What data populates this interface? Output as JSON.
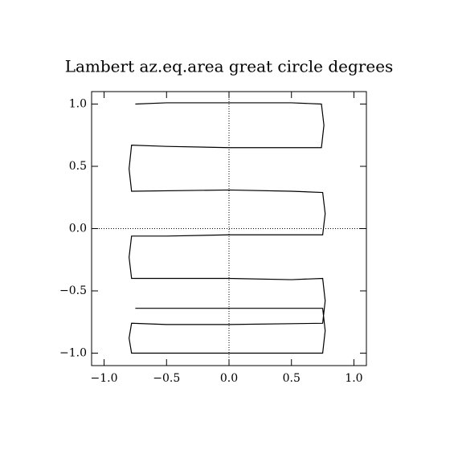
{
  "chart_data": {
    "type": "line",
    "title": "Lambert az.eq.area great circle degrees",
    "x": [
      -0.75,
      -0.5,
      0.0,
      0.5,
      0.74,
      0.76,
      0.74,
      0.0,
      -0.5,
      -0.78,
      -0.8,
      -0.78,
      0.0,
      0.5,
      0.75,
      0.77,
      0.75,
      0.0,
      -0.5,
      -0.78,
      -0.8,
      -0.78,
      0.0,
      0.5,
      0.75,
      0.77,
      0.75,
      0.0,
      -0.5,
      -0.78,
      -0.8,
      -0.78,
      0.0,
      0.5,
      0.75,
      0.77,
      0.75,
      0.0,
      -0.75
    ],
    "y": [
      1.0,
      1.01,
      1.01,
      1.01,
      1.0,
      0.83,
      0.65,
      0.65,
      0.66,
      0.67,
      0.48,
      0.3,
      0.31,
      0.3,
      0.29,
      0.12,
      -0.05,
      -0.05,
      -0.06,
      -0.06,
      -0.23,
      -0.4,
      -0.4,
      -0.41,
      -0.4,
      -0.58,
      -0.76,
      -0.77,
      -0.77,
      -0.76,
      -0.88,
      -1.0,
      -1.0,
      -1.0,
      -1.0,
      -0.82,
      -0.64,
      -0.64,
      -0.64
    ],
    "color": "#000000",
    "xlim": [
      -1.1,
      1.1
    ],
    "ylim": [
      -1.1,
      1.1
    ],
    "xticks": [
      {
        "value": -1.0,
        "label": "−1.0"
      },
      {
        "value": -0.5,
        "label": "−0.5"
      },
      {
        "value": 0,
        "label": "0.0"
      },
      {
        "value": 0.5,
        "label": "0.5"
      },
      {
        "value": 1.0,
        "label": "1.0"
      }
    ],
    "yticks": [
      {
        "value": -1.0,
        "label": "−1.0"
      },
      {
        "value": -0.5,
        "label": "−0.5"
      },
      {
        "value": 0,
        "label": "0.0"
      },
      {
        "value": 0.5,
        "label": "0.5"
      },
      {
        "value": 1.0,
        "label": "1.0"
      }
    ],
    "zero_lines": true
  }
}
